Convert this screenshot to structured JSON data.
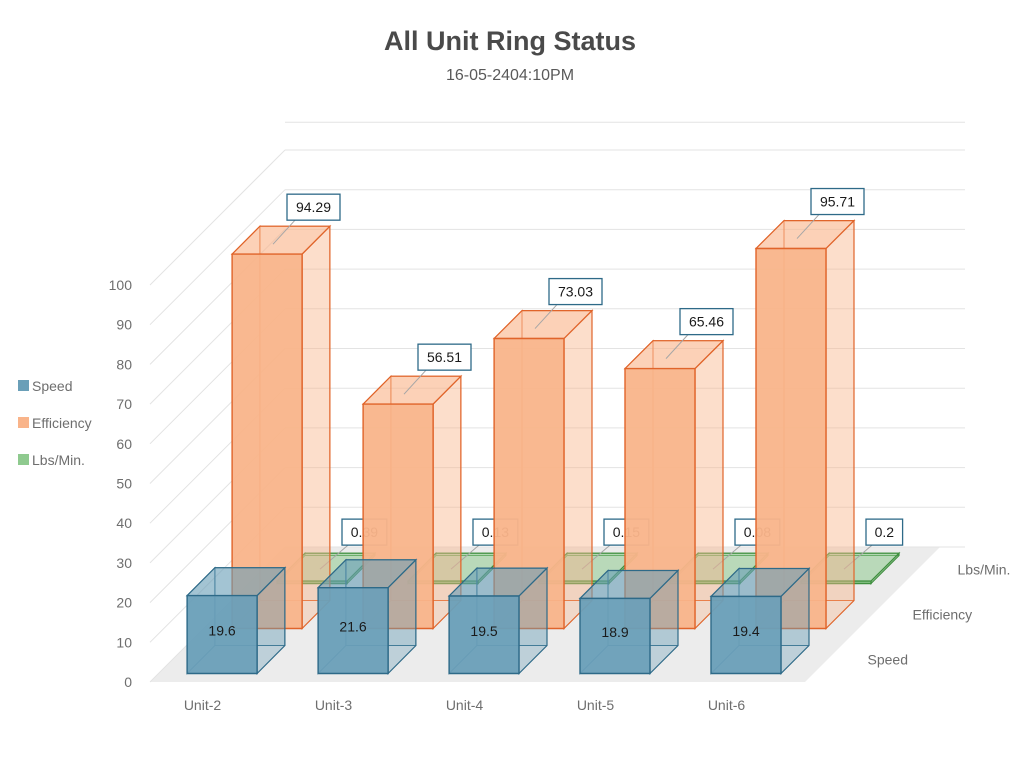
{
  "title": "All Unit Ring Status",
  "subtitle": "16-05-2404:10PM",
  "colors": {
    "speed": "#6a9fb8",
    "speed_edge": "#2e6a88",
    "efficiency": "#f9b48a",
    "efficiency_edge": "#e0642a",
    "lbs": "#8fca8f",
    "lbs_edge": "#3f8f3f",
    "grid": "#e3e3e3",
    "floor": "#ececec",
    "label_border": "#2e6a88"
  },
  "legend": {
    "position": "left",
    "items": [
      {
        "name": "Speed",
        "color_key": "speed"
      },
      {
        "name": "Efficiency",
        "color_key": "efficiency"
      },
      {
        "name": "Lbs/Min.",
        "color_key": "lbs"
      }
    ]
  },
  "chart_data": {
    "type": "bar",
    "variant": "3d-column",
    "title": "All Unit Ring Status",
    "subtitle": "16-05-2404:10PM",
    "categories": [
      "Unit-2",
      "Unit-3",
      "Unit-4",
      "Unit-5",
      "Unit-6"
    ],
    "depth_labels": [
      "Speed",
      "Efficiency",
      "Lbs/Min."
    ],
    "series": [
      {
        "name": "Speed",
        "values": [
          19.6,
          21.6,
          19.5,
          18.9,
          19.4
        ]
      },
      {
        "name": "Efficiency",
        "values": [
          94.29,
          56.51,
          73.03,
          65.46,
          95.71
        ]
      },
      {
        "name": "Lbs/Min.",
        "values": [
          0.39,
          0.13,
          0.15,
          0.08,
          0.2
        ]
      }
    ],
    "yticks": [
      0,
      10,
      20,
      30,
      40,
      50,
      60,
      70,
      80,
      90,
      100
    ],
    "ylim": [
      0,
      100
    ],
    "grid": true,
    "legend": "left"
  }
}
